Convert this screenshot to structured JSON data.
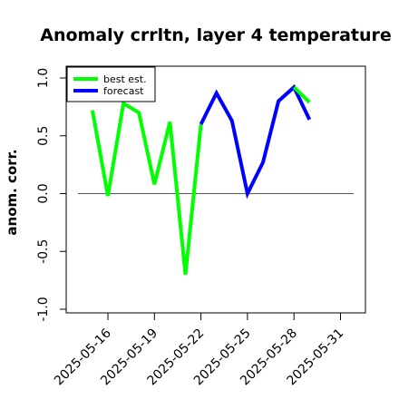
{
  "chart_data": {
    "type": "line",
    "title": "Anomaly crrltn, layer 4 temperature",
    "xlabel": "",
    "ylabel": "anom. corr.",
    "ylim": [
      -1.0,
      1.0
    ],
    "y_ticks": [
      "-1.0",
      "-0.5",
      "0.0",
      "0.5",
      "1.0"
    ],
    "x_ticks": [
      "2025-05-16",
      "2025-05-19",
      "2025-05-22",
      "2025-05-25",
      "2025-05-28",
      "2025-05-31"
    ],
    "highlighted_x_tick": "2025-05-22",
    "highlight_color": "#228B22",
    "reference_line_y": 0.0,
    "legend": {
      "placement": "top-left",
      "entries": [
        {
          "label": "best est.",
          "color": "#00ff00"
        },
        {
          "label": "forecast",
          "color": "#0000ff"
        }
      ]
    },
    "series": [
      {
        "name": "best est.",
        "color": "#00ff00",
        "x": [
          "2025-05-15",
          "2025-05-16",
          "2025-05-17",
          "2025-05-18",
          "2025-05-19",
          "2025-05-20",
          "2025-05-21",
          "2025-05-22"
        ],
        "values": [
          0.72,
          -0.02,
          0.78,
          0.7,
          0.08,
          0.62,
          -0.7,
          0.6
        ]
      },
      {
        "name": "forecast",
        "color": "#0000ff",
        "x": [
          "2025-05-22",
          "2025-05-23",
          "2025-05-24",
          "2025-05-25",
          "2025-05-26",
          "2025-05-27",
          "2025-05-28",
          "2025-05-29"
        ],
        "values": [
          0.6,
          0.87,
          0.63,
          0.0,
          0.27,
          0.8,
          0.92,
          0.64
        ]
      },
      {
        "name": "best est.",
        "color": "#00ff00",
        "x": [
          "2025-05-28",
          "2025-05-29"
        ],
        "values": [
          0.92,
          0.79
        ]
      }
    ]
  }
}
